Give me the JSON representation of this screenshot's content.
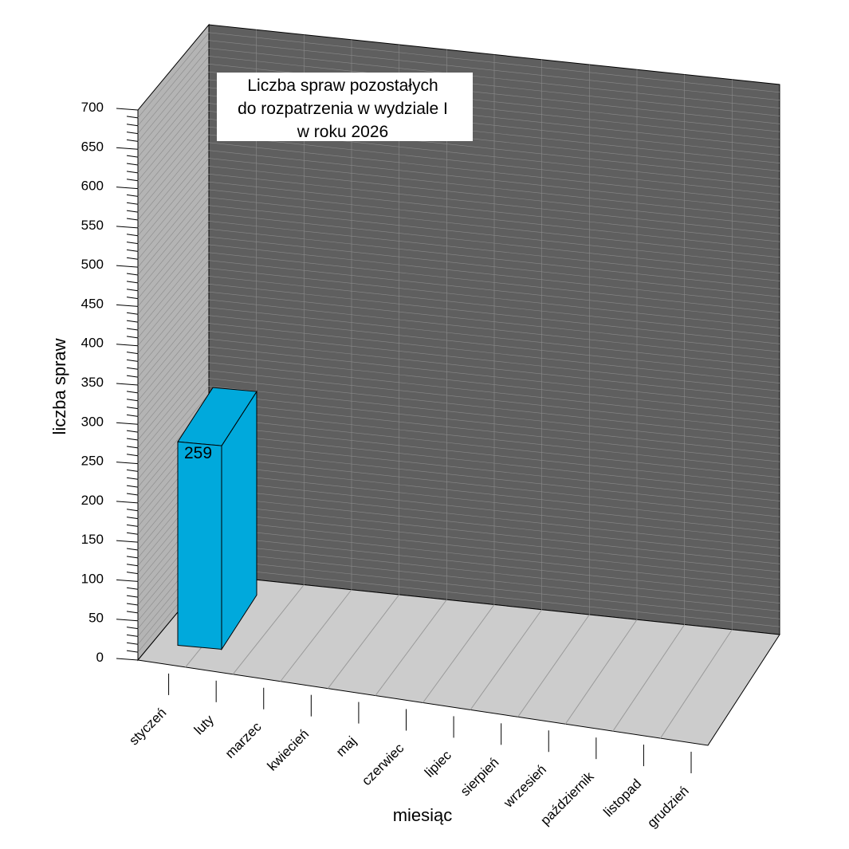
{
  "chart_data": {
    "type": "bar",
    "title_lines": [
      "Liczba spraw pozostałych",
      "do rozpatrzenia w  wydziale I",
      "w roku 2026"
    ],
    "xlabel": "miesiąc",
    "ylabel": "liczba spraw",
    "categories": [
      "styczeń",
      "luty",
      "marzec",
      "kwiecień",
      "maj",
      "czerwiec",
      "lipiec",
      "sierpień",
      "wrzesień",
      "październik",
      "listopad",
      "grudzień"
    ],
    "values": [
      259,
      null,
      null,
      null,
      null,
      null,
      null,
      null,
      null,
      null,
      null,
      null
    ],
    "data_labels": [
      "259"
    ],
    "ylim": [
      0,
      700
    ],
    "yticks": [
      0,
      50,
      100,
      150,
      200,
      250,
      300,
      350,
      400,
      450,
      500,
      550,
      600,
      650,
      700
    ],
    "ytick_labels": [
      "0",
      "50",
      "100",
      "150",
      "200",
      "250",
      "300",
      "350",
      "400",
      "450",
      "500",
      "550",
      "600",
      "650",
      "700"
    ],
    "projection": "3d",
    "grid": true,
    "legend": "none",
    "colors": {
      "bar_front": "#00a9dc",
      "bar_side": "#00a9dc",
      "bar_top": "#00a9dc",
      "back_wall": "#5f5f5f",
      "side_wall": "#b4b4b4",
      "floor": "#cccccc",
      "grid": "#8a8a8a",
      "axis": "#000000"
    }
  }
}
